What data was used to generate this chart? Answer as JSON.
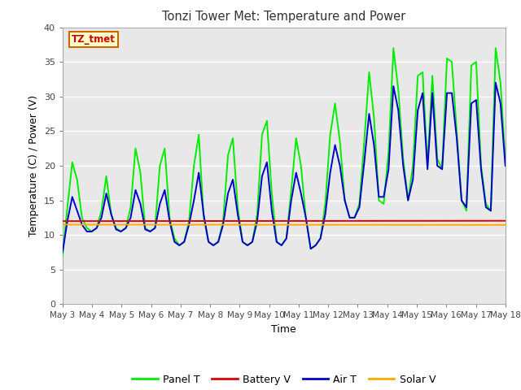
{
  "title": "Tonzi Tower Met: Temperature and Power",
  "xlabel": "Time",
  "ylabel": "Temperature (C) / Power (V)",
  "ylim": [
    0,
    40
  ],
  "yticks": [
    0,
    5,
    10,
    15,
    20,
    25,
    30,
    35,
    40
  ],
  "figure_bg": "#ffffff",
  "plot_bg_color": "#e8e8e8",
  "annotation_text": "TZ_tmet",
  "annotation_color": "#cc0000",
  "annotation_bg": "#ffffcc",
  "annotation_border": "#cc6600",
  "panel_t_color": "#00ee00",
  "battery_v_color": "#dd0000",
  "air_t_color": "#0000cc",
  "solar_v_color": "#ffaa00",
  "line_width": 1.4,
  "xtick_labels": [
    "May 3",
    "May 4",
    "May 5",
    "May 6",
    "May 7",
    "May 8",
    "May 9",
    "May 10",
    "May 11",
    "May 12",
    "May 13",
    "May 14",
    "May 15",
    "May 16",
    "May 17",
    "May 18"
  ],
  "legend_entries": [
    "Panel T",
    "Battery V",
    "Air T",
    "Solar V"
  ],
  "battery_v_value": 12.0,
  "solar_v_value": 11.5,
  "panel_t_data": [
    7.0,
    14.0,
    20.5,
    18.0,
    12.5,
    11.0,
    10.5,
    11.0,
    13.5,
    18.5,
    13.0,
    11.0,
    10.5,
    11.0,
    14.0,
    22.5,
    19.0,
    11.0,
    10.5,
    11.0,
    20.0,
    22.5,
    12.5,
    9.5,
    8.5,
    9.0,
    12.0,
    20.0,
    24.5,
    12.5,
    9.0,
    8.5,
    9.0,
    12.0,
    21.5,
    24.0,
    14.0,
    9.0,
    8.5,
    9.0,
    13.0,
    24.5,
    26.5,
    16.0,
    9.0,
    8.5,
    9.5,
    16.5,
    24.0,
    20.0,
    12.5,
    8.0,
    8.5,
    9.5,
    14.5,
    24.5,
    29.0,
    23.5,
    15.0,
    12.5,
    12.5,
    14.5,
    23.5,
    33.5,
    27.0,
    15.0,
    14.5,
    22.0,
    37.0,
    31.0,
    21.0,
    15.0,
    20.0,
    33.0,
    33.5,
    20.0,
    33.0,
    21.0,
    19.5,
    35.5,
    35.0,
    25.0,
    15.0,
    13.5,
    34.5,
    35.0,
    20.0,
    14.5,
    13.5,
    37.0,
    32.0,
    20.5
  ],
  "air_t_data": [
    7.5,
    12.0,
    15.5,
    13.5,
    11.5,
    10.5,
    10.5,
    11.0,
    12.5,
    16.0,
    13.0,
    10.8,
    10.5,
    11.0,
    12.5,
    16.5,
    14.5,
    10.8,
    10.5,
    11.0,
    14.5,
    16.5,
    12.0,
    9.0,
    8.5,
    9.0,
    11.5,
    15.0,
    19.0,
    13.0,
    9.0,
    8.5,
    9.0,
    11.5,
    16.0,
    18.0,
    13.0,
    9.0,
    8.5,
    9.0,
    12.0,
    18.5,
    20.5,
    13.5,
    9.0,
    8.5,
    9.5,
    15.0,
    19.0,
    16.0,
    12.5,
    8.0,
    8.5,
    9.5,
    13.0,
    19.0,
    23.0,
    20.0,
    15.0,
    12.5,
    12.5,
    14.0,
    20.5,
    27.5,
    23.0,
    15.5,
    15.5,
    19.5,
    31.5,
    28.0,
    20.0,
    15.0,
    18.0,
    28.0,
    30.5,
    19.5,
    30.5,
    20.0,
    19.5,
    30.5,
    30.5,
    24.0,
    15.0,
    14.0,
    29.0,
    29.5,
    19.5,
    14.0,
    13.5,
    32.0,
    29.0,
    20.0
  ]
}
